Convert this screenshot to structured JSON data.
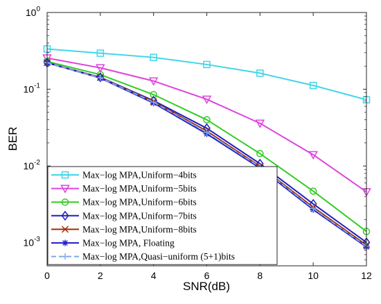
{
  "chart_data": {
    "type": "line",
    "title": "",
    "xlabel": "SNR(dB)",
    "ylabel": "BER",
    "y_scale": "log",
    "xlim": [
      0,
      12
    ],
    "ylim": [
      0.0005,
      1
    ],
    "x_ticks": [
      0,
      2,
      4,
      6,
      8,
      10,
      12
    ],
    "y_ticks": [
      {
        "value": 1,
        "base": "10",
        "exp": "0"
      },
      {
        "value": 0.1,
        "base": "10",
        "exp": "-1"
      },
      {
        "value": 0.01,
        "base": "10",
        "exp": "-2"
      },
      {
        "value": 0.001,
        "base": "10",
        "exp": "-3"
      }
    ],
    "grid": false,
    "legend_position": "bottom-left",
    "x": [
      0,
      2,
      4,
      6,
      8,
      10,
      12
    ],
    "series": [
      {
        "name": "Max−log MPA,Uniform−4bits",
        "color": "#3fd6e8",
        "marker": "square",
        "dashed": false,
        "values": [
          0.335,
          0.295,
          0.26,
          0.21,
          0.162,
          0.112,
          0.073
        ]
      },
      {
        "name": "Max−log MPA,Uniform−5bits",
        "color": "#dd44dd",
        "marker": "triangle-down",
        "dashed": false,
        "values": [
          0.255,
          0.19,
          0.128,
          0.074,
          0.036,
          0.014,
          0.0046
        ]
      },
      {
        "name": "Max−log MPA,Uniform−6bits",
        "color": "#33cc22",
        "marker": "circle",
        "dashed": false,
        "values": [
          0.23,
          0.155,
          0.085,
          0.04,
          0.0145,
          0.0047,
          0.0014
        ]
      },
      {
        "name": "Max−log MPA,Uniform−7bits",
        "color": "#1f1fb8",
        "marker": "diamond",
        "dashed": false,
        "values": [
          0.222,
          0.143,
          0.071,
          0.031,
          0.0107,
          0.0032,
          0.00101
        ]
      },
      {
        "name": "Max−log MPA,Uniform−8bits",
        "color": "#a32a00",
        "marker": "x",
        "dashed": false,
        "values": [
          0.222,
          0.142,
          0.069,
          0.0285,
          0.0099,
          0.0029,
          0.00093
        ]
      },
      {
        "name": "Max−log MPA, Floating",
        "color": "#2020c8",
        "marker": "star",
        "dashed": false,
        "values": [
          0.221,
          0.14,
          0.066,
          0.0262,
          0.0094,
          0.0027,
          0.00088
        ]
      },
      {
        "name": "Max−log MPA,Quasi−uniform (5+1)bits",
        "color": "#7fa8e8",
        "marker": "plus",
        "dashed": true,
        "values": [
          0.222,
          0.141,
          0.068,
          0.0275,
          0.0097,
          0.0028,
          0.0009
        ]
      }
    ]
  }
}
